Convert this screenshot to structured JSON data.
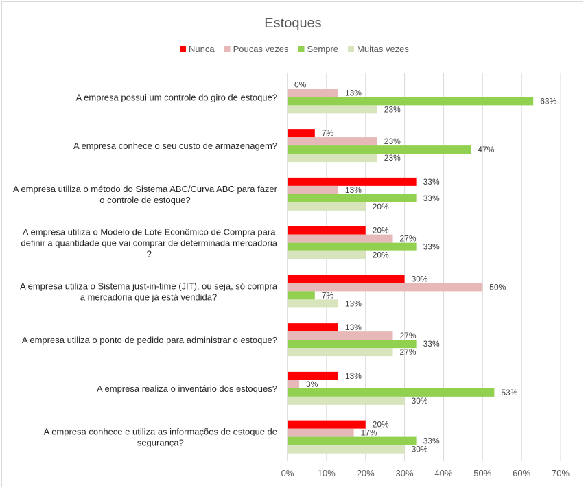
{
  "chart_data": {
    "type": "bar",
    "orientation": "horizontal",
    "title": "Estoques",
    "xlabel": "",
    "ylabel": "",
    "xlim": [
      0,
      70
    ],
    "x_ticks": [
      "0%",
      "10%",
      "20%",
      "30%",
      "40%",
      "50%",
      "60%",
      "70%"
    ],
    "grid": true,
    "legend_position": "top",
    "categories": [
      [
        "A empresa possui um controle do giro de estoque?"
      ],
      [
        "A empresa conhece o seu custo de armazenagem?"
      ],
      [
        "A empresa utiliza o método do Sistema ABC/Curva ABC para fazer",
        "o controle de estoque?"
      ],
      [
        "A empresa utiliza o Modelo de Lote Econômico de Compra para",
        "definir a quantidade que vai comprar de determinada mercadoria",
        "?"
      ],
      [
        "A empresa utiliza o Sistema just-in-time (JIT), ou seja, só compra",
        "a mercadoria que já está vendida?"
      ],
      [
        "A empresa utiliza o ponto de pedido para administrar o estoque?"
      ],
      [
        "A empresa realiza o inventário dos estoques?"
      ],
      [
        "A empresa conhece e utiliza as informações de estoque de",
        "segurança?"
      ]
    ],
    "series": [
      {
        "name": "Nunca",
        "color": "#ff0000",
        "values": [
          0,
          7,
          33,
          20,
          30,
          13,
          13,
          20
        ],
        "labels": [
          "0%",
          "7%",
          "33%",
          "20%",
          "30%",
          "13%",
          "13%",
          "20%"
        ]
      },
      {
        "name": "Poucas vezes",
        "color": "#e6b8b7",
        "values": [
          13,
          23,
          13,
          27,
          50,
          27,
          3,
          17
        ],
        "labels": [
          "13%",
          "23%",
          "13%",
          "27%",
          "50%",
          "27%",
          "3%",
          "17%"
        ]
      },
      {
        "name": "Sempre",
        "color": "#92d050",
        "values": [
          63,
          47,
          33,
          33,
          7,
          33,
          53,
          33
        ],
        "labels": [
          "63%",
          "47%",
          "33%",
          "33%",
          "7%",
          "33%",
          "53%",
          "33%"
        ]
      },
      {
        "name": "Muitas vezes",
        "color": "#d8e4bc",
        "values": [
          23,
          23,
          20,
          20,
          13,
          27,
          30,
          30
        ],
        "labels": [
          "23%",
          "23%",
          "20%",
          "20%",
          "13%",
          "27%",
          "30%",
          "30%"
        ]
      }
    ]
  }
}
